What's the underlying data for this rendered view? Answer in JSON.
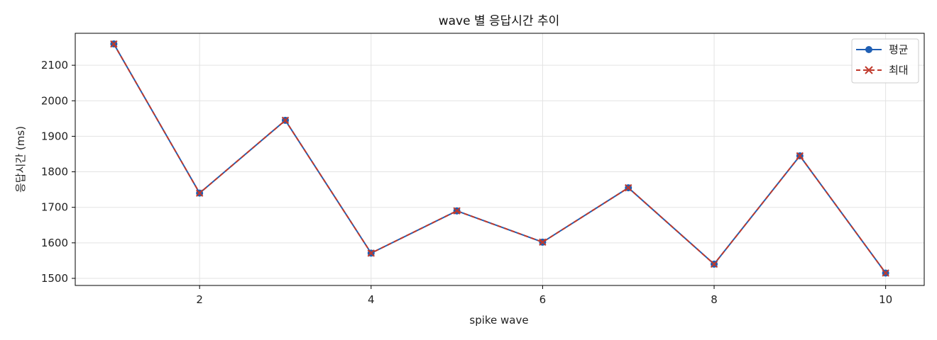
{
  "chart_data": {
    "type": "line",
    "title": "wave 별 응답시간 추이",
    "xlabel": "spike wave",
    "ylabel": "응답시간 (ms)",
    "xlim": [
      0.55,
      10.45
    ],
    "ylim": [
      1480,
      2190
    ],
    "x_ticks": [
      2,
      4,
      6,
      8,
      10
    ],
    "y_ticks": [
      1500,
      1600,
      1700,
      1800,
      1900,
      2000,
      2100
    ],
    "grid": true,
    "legend_position": "top-right",
    "x": [
      1,
      2,
      3,
      4,
      5,
      6,
      7,
      8,
      9,
      10
    ],
    "series": [
      {
        "name": "평균",
        "values": [
          2160,
          1740,
          1945,
          1571,
          1690,
          1602,
          1755,
          1540,
          1845,
          1515
        ],
        "color": "#1f5fb4",
        "marker": "circle",
        "line_style": "solid"
      },
      {
        "name": "최대",
        "values": [
          2160,
          1740,
          1945,
          1571,
          1690,
          1602,
          1755,
          1540,
          1845,
          1515
        ],
        "color": "#c0392b",
        "marker": "x",
        "line_style": "dashed"
      }
    ]
  }
}
